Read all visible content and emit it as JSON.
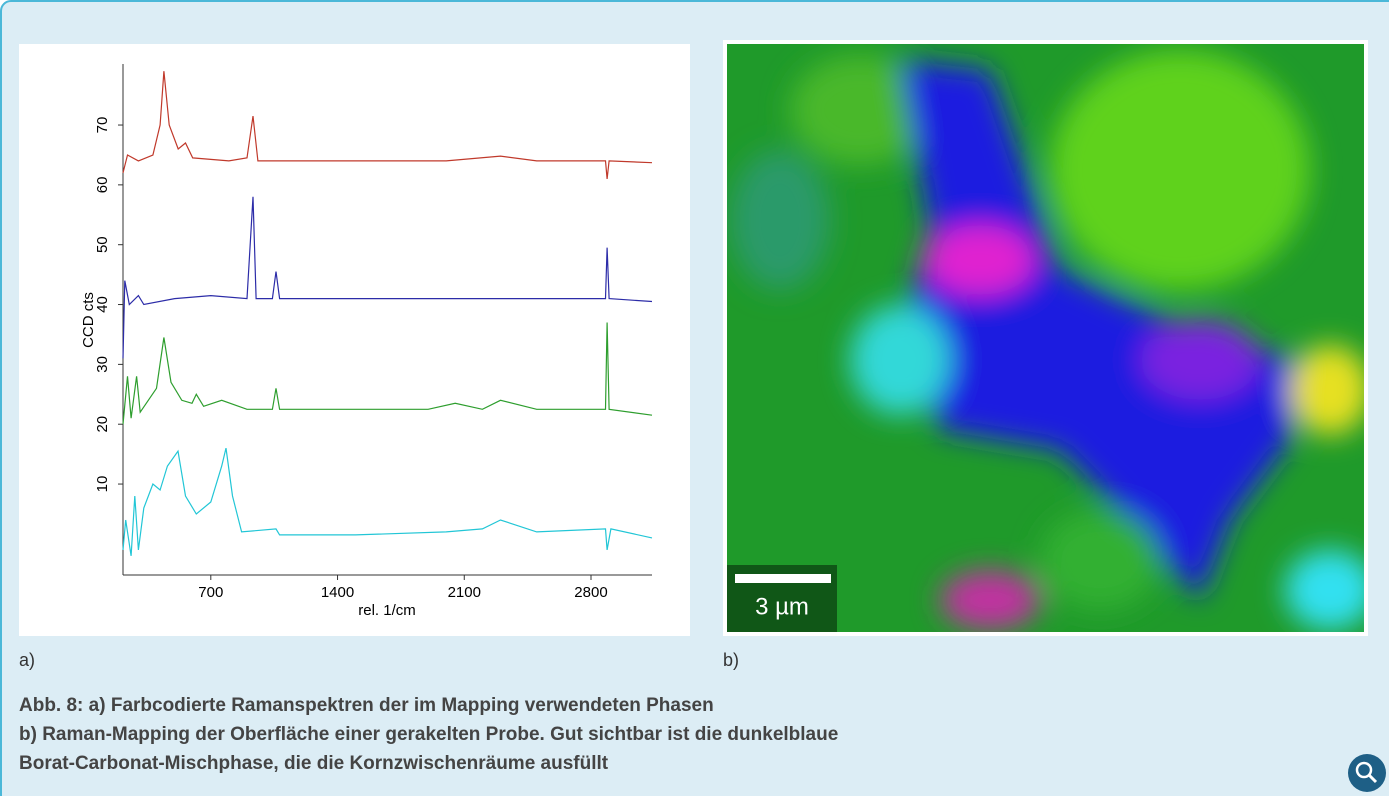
{
  "chart_data": {
    "type": "line",
    "y_label": "CCD cts",
    "x_label": "rel. 1/cm",
    "xlim": [
      215,
      3137
    ],
    "ylim": [
      -5.2,
      80.2
    ],
    "xticks": [
      700,
      1400,
      2100,
      2800
    ],
    "yticks": [
      10,
      20,
      30,
      40,
      50,
      60,
      70
    ],
    "series": [
      {
        "color": "#c0392b",
        "x": [
          215,
          240,
          300,
          380,
          420,
          441,
          470,
          520,
          560,
          600,
          800,
          900,
          933,
          960,
          1200,
          1600,
          2000,
          2300,
          2500,
          2880,
          2889,
          2900,
          3137
        ],
        "values": [
          62,
          65,
          64,
          65,
          70,
          79,
          70,
          66,
          67,
          64.5,
          64,
          64.5,
          71.5,
          64,
          64,
          64,
          64,
          64.8,
          64,
          64,
          61,
          64,
          63.7
        ]
      },
      {
        "color": "#2c2ca8",
        "x": [
          215,
          225,
          250,
          300,
          330,
          500,
          700,
          900,
          933,
          950,
          1040,
          1060,
          1080,
          1500,
          2000,
          2500,
          2880,
          2889,
          2900,
          3137
        ],
        "values": [
          31,
          44,
          40,
          41.5,
          40,
          41,
          41.5,
          41,
          58,
          41,
          41,
          45.5,
          41,
          41,
          41,
          41,
          41,
          49.5,
          41,
          40.5
        ]
      },
      {
        "color": "#2e9e2e",
        "x": [
          215,
          240,
          260,
          290,
          310,
          400,
          441,
          480,
          540,
          596,
          620,
          660,
          760,
          900,
          1040,
          1060,
          1080,
          1500,
          1900,
          2050,
          2200,
          2300,
          2500,
          2880,
          2889,
          2900,
          3137
        ],
        "values": [
          20,
          28,
          21,
          28,
          22,
          26,
          34.5,
          27,
          24,
          23.5,
          25,
          23,
          24,
          22.5,
          22.5,
          26,
          22.5,
          22.5,
          22.5,
          23.5,
          22.5,
          24,
          22.5,
          22.5,
          37,
          22.5,
          21.5
        ]
      },
      {
        "color": "#22c6d6",
        "x": [
          215,
          230,
          260,
          280,
          300,
          330,
          380,
          420,
          460,
          519,
          560,
          620,
          700,
          760,
          784,
          820,
          870,
          1060,
          1080,
          1500,
          2000,
          2200,
          2300,
          2500,
          2880,
          2889,
          2910,
          3137
        ],
        "values": [
          -1,
          4,
          -2,
          8,
          -1,
          6,
          10,
          9,
          13,
          15.5,
          8,
          5,
          7,
          13,
          16,
          8,
          2,
          2.5,
          1.5,
          1.5,
          2,
          2.5,
          4,
          2,
          2.5,
          -1,
          2.5,
          1
        ]
      }
    ]
  },
  "panels": {
    "a": "a)",
    "b": "b)"
  },
  "scale_bar": "3 µm",
  "caption": [
    "Abb. 8: a) Farbcodierte Ramanspektren der im Mapping verwendeten Phasen",
    "b) Raman-Mapping der Oberfläche einer gerakelten Probe. Gut sichtbar ist die dunkelblaue",
    "Borat-Carbonat-Mischphase, die die Kornzwischenräume ausfüllt"
  ]
}
